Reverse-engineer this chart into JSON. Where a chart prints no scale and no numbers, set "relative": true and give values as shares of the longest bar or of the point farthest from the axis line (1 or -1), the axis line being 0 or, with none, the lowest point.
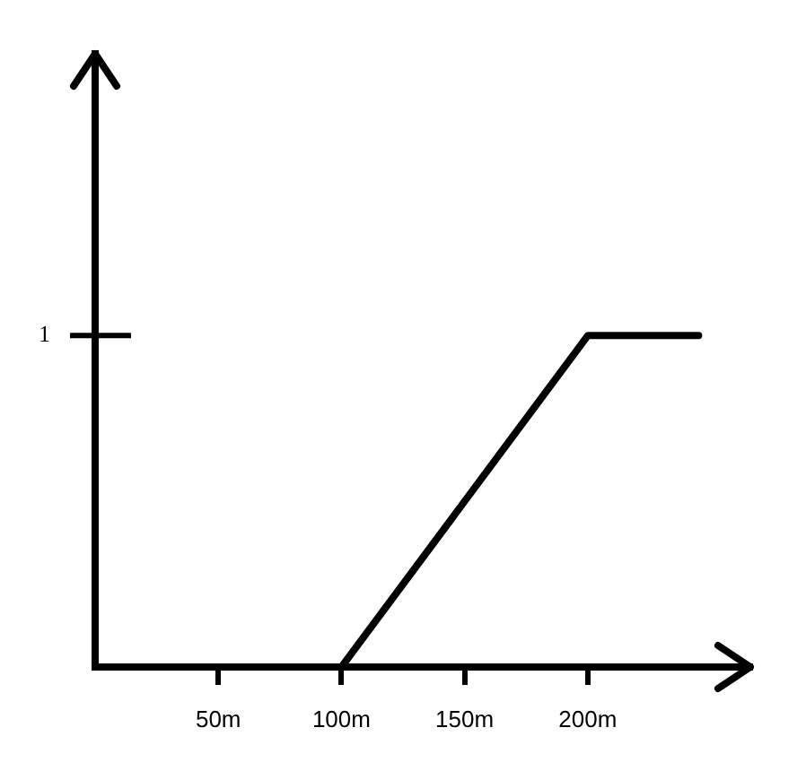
{
  "chart_data": {
    "type": "line",
    "x": [
      100,
      200,
      245
    ],
    "series": [
      {
        "color": "#000000",
        "values": [
          0,
          1,
          1
        ]
      }
    ],
    "xlim": [
      0,
      266
    ],
    "xticks": [
      {
        "value": 50,
        "label": "50m"
      },
      {
        "value": 100,
        "label": "100m"
      },
      {
        "value": 150,
        "label": "150m"
      },
      {
        "value": 200,
        "label": "200m"
      }
    ],
    "relative": true,
    "annotations": [
      "1"
    ],
    "grid": false,
    "legend": false,
    "marker": "none",
    "line_style": "solid"
  }
}
